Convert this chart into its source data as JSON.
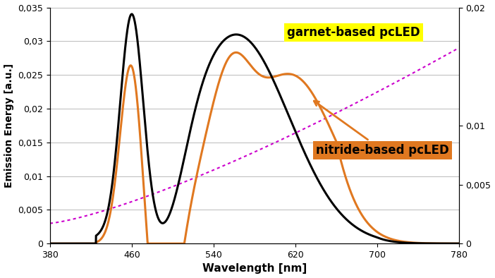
{
  "xlabel": "Wavelength [nm]",
  "ylabel": "Emission Energy [a.u.]",
  "xlim": [
    380,
    780
  ],
  "ylim_left": [
    0,
    0.035
  ],
  "ylim_right": [
    0,
    0.02
  ],
  "yticks_left": [
    0,
    0.005,
    0.01,
    0.015,
    0.02,
    0.025,
    0.03,
    0.035
  ],
  "ytick_labels_left": [
    "0",
    "0,005",
    "0,01",
    "0,015",
    "0,02",
    "0,025",
    "0,03",
    "0,035"
  ],
  "yticks_right": [
    0,
    0.005,
    0.01,
    0.02
  ],
  "ytick_labels_right": [
    "0",
    "0,005",
    "0,01",
    "0,02"
  ],
  "xticks": [
    380,
    460,
    540,
    620,
    700,
    780
  ],
  "garnet_label": "garnet-based pcLED",
  "nitride_label": "nitride-based pcLED",
  "garnet_color": "#000000",
  "nitride_color": "#e07820",
  "magenta_color": "#cc00cc",
  "garnet_label_bg": "#ffff00",
  "nitride_label_bg": "#e07820",
  "background_color": "#ffffff",
  "grid_color": "#b0b0b0"
}
